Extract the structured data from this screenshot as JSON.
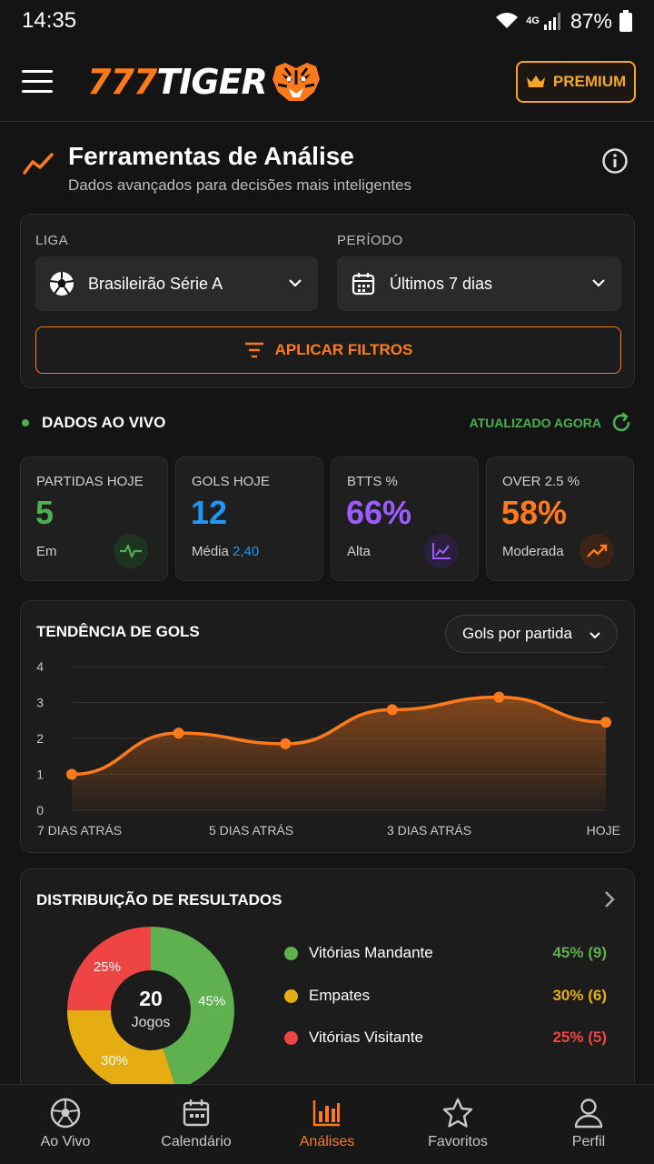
{
  "status": {
    "time": "14:35",
    "network": "4G",
    "battery": "87%"
  },
  "header": {
    "logo_num": "777",
    "logo_word": "TIGER",
    "premium_label": "PREMIUM"
  },
  "page": {
    "title": "Ferramentas de Análise",
    "subtitle": "Dados avançados para decisões mais inteligentes"
  },
  "filters": {
    "league_label": "LIGA",
    "league_value": "Brasileirão Série A",
    "period_label": "PERÍODO",
    "period_value": "Últimos 7 dias",
    "apply_label": "APLICAR FILTROS"
  },
  "live": {
    "label": "DADOS AO VIVO",
    "updated": "ATUALIZADO AGORA"
  },
  "stats": [
    {
      "label": "PARTIDAS HOJE",
      "value": "5",
      "sub": "Em",
      "color": "#4caf50",
      "icon": "pulse-icon"
    },
    {
      "label": "GOLS HOJE",
      "value": "12",
      "sub": "Média",
      "sub_value": "2,40",
      "color": "#2196f3",
      "icon": ""
    },
    {
      "label": "BTTS %",
      "value": "66%",
      "sub": "Alta",
      "color": "#9c5cff",
      "icon": "line-chart-icon"
    },
    {
      "label": "OVER 2.5 %",
      "value": "58%",
      "sub": "Moderada",
      "color": "#ff7a1a",
      "icon": "trend-up-icon"
    }
  ],
  "trend": {
    "title": "TENDÊNCIA DE GOLS",
    "selector": "Gols por partida"
  },
  "chart_data": {
    "type": "area",
    "title": "TENDÊNCIA DE GOLS",
    "x_tick_labels": [
      "7 DIAS ATRÁS",
      "5 DIAS ATRÁS",
      "3 DIAS ATRÁS",
      "HOJE"
    ],
    "y_ticks": [
      "0",
      "1",
      "2",
      "3",
      "4"
    ],
    "ylim": [
      0,
      4
    ],
    "series": [
      {
        "values": [
          1.0,
          2.15,
          1.85,
          2.8,
          3.15,
          2.45
        ]
      }
    ],
    "color": "#ff7a1a"
  },
  "distribution": {
    "title": "DISTRIBUIÇÃO DE RESULTADOS",
    "center_value": "20",
    "center_label": "Jogos",
    "items": [
      {
        "label": "Vitórias Mandante",
        "value": "45% (9)",
        "pct": 45,
        "slice_label": "45%",
        "color": "#5fb04e"
      },
      {
        "label": "Empates",
        "value": "30% (6)",
        "pct": 30,
        "slice_label": "30%",
        "color": "#e6ad12"
      },
      {
        "label": "Vitórias Visitante",
        "value": "25% (5)",
        "pct": 25,
        "slice_label": "25%",
        "color": "#ef4444"
      }
    ]
  },
  "nav": [
    {
      "label": "Ao Vivo",
      "icon": "soccer-ball-icon"
    },
    {
      "label": "Calendário",
      "icon": "calendar-icon"
    },
    {
      "label": "Análises",
      "icon": "bar-chart-icon",
      "active": true
    },
    {
      "label": "Favoritos",
      "icon": "star-icon"
    },
    {
      "label": "Perfil",
      "icon": "user-icon"
    }
  ]
}
